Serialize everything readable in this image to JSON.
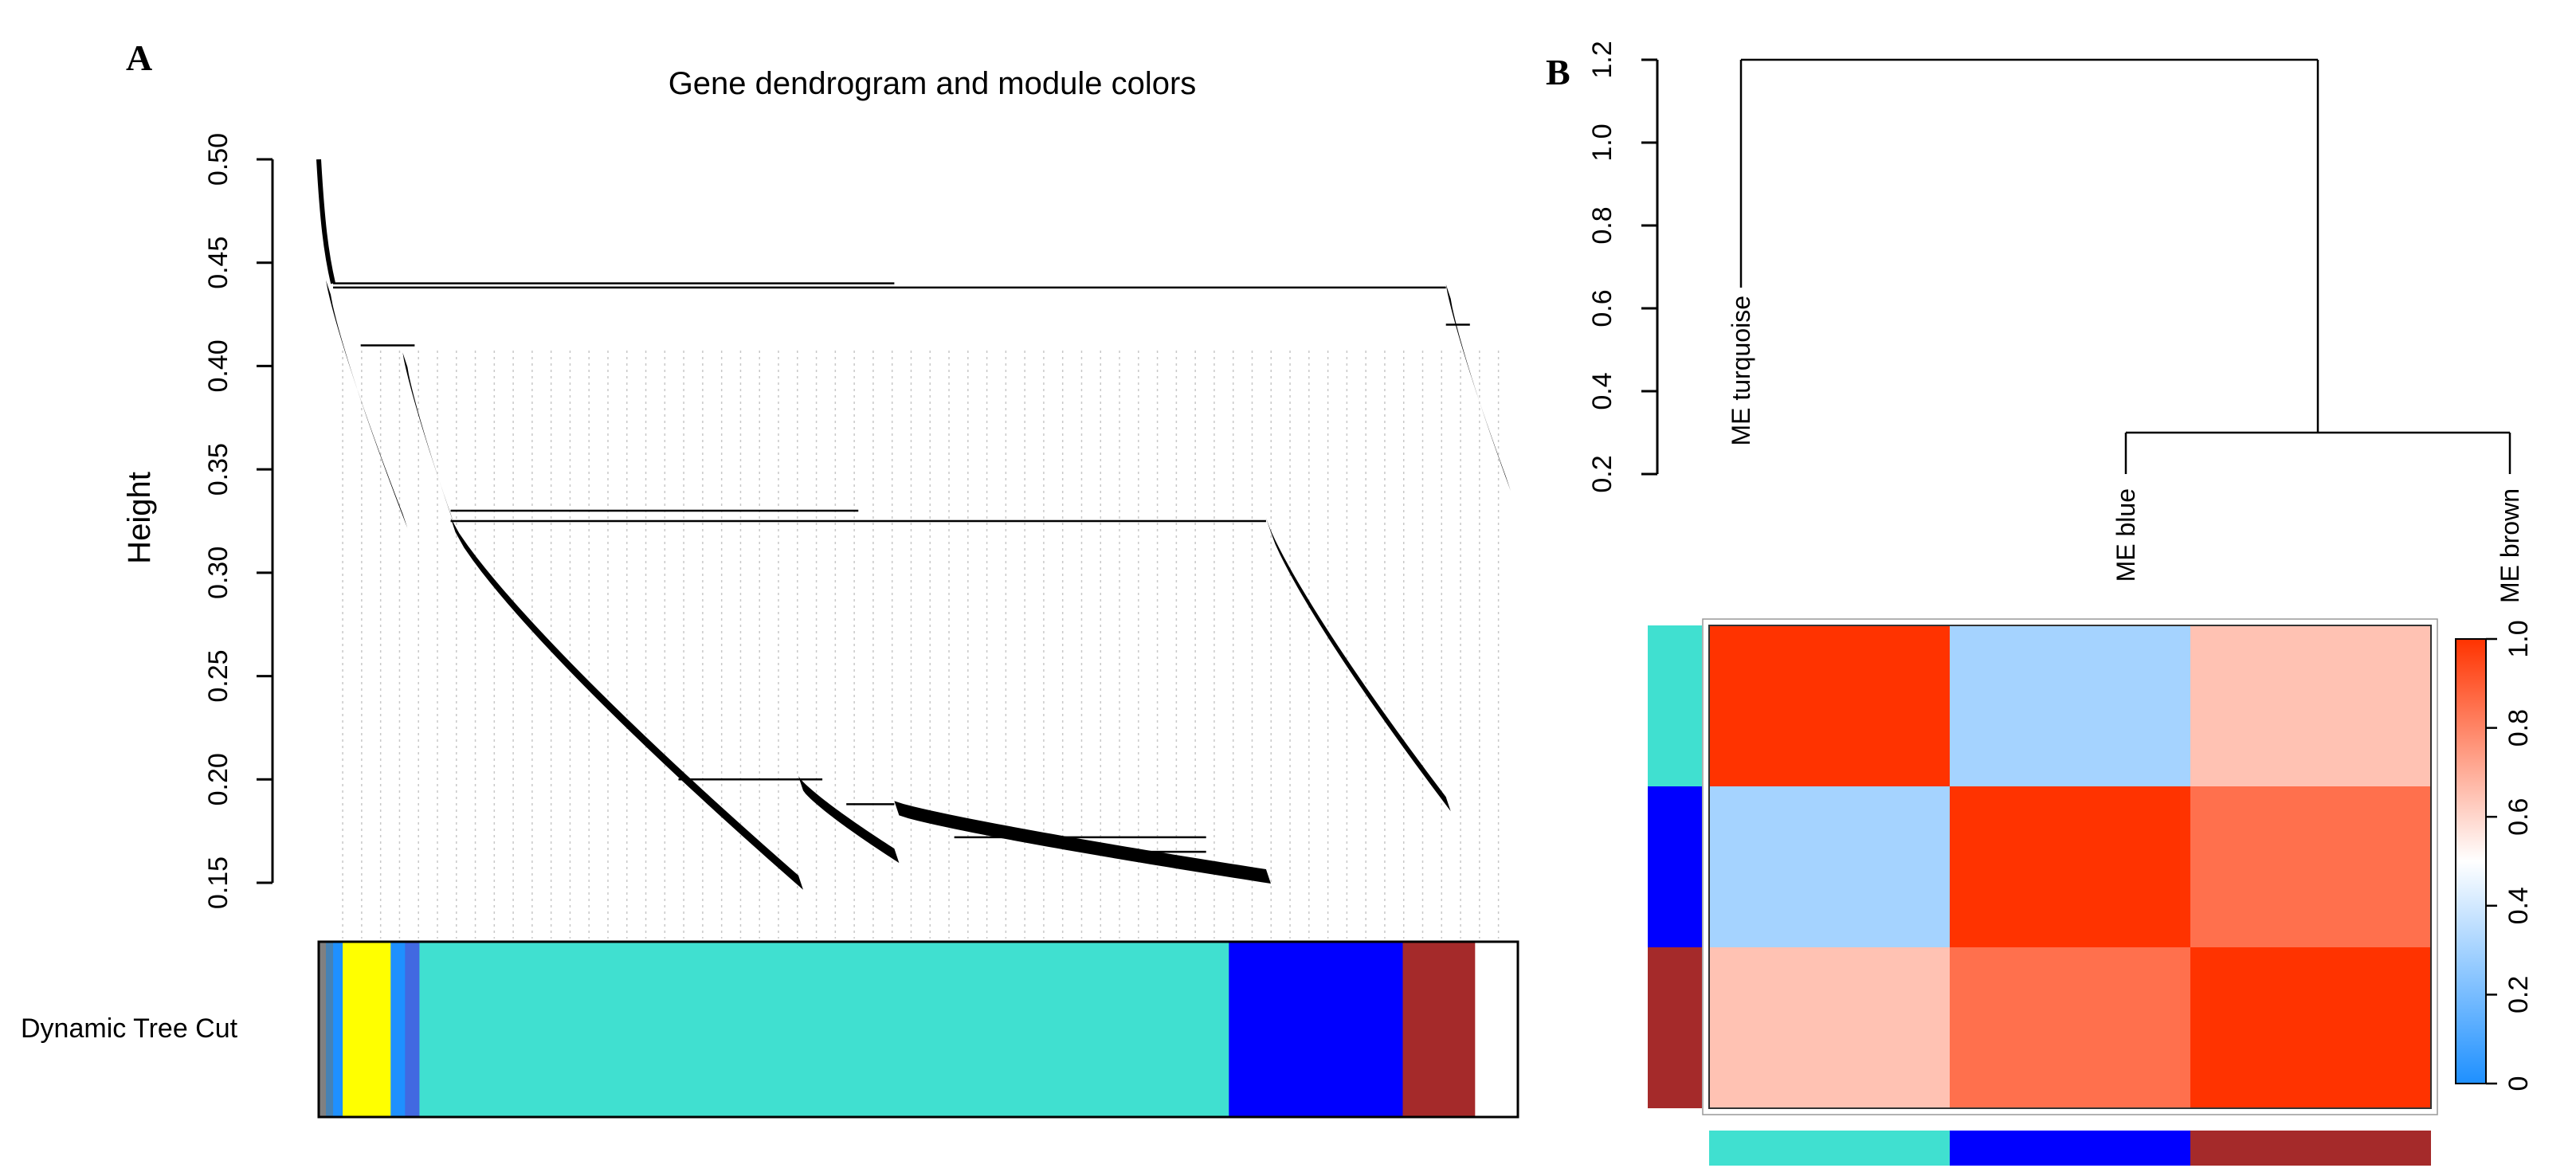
{
  "panel_a": {
    "letter": "A",
    "title": "Gene dendrogram and module colors",
    "ylabel": "Height",
    "color_row_label": "Dynamic Tree Cut"
  },
  "panel_b": {
    "letter": "B"
  },
  "chart_data": [
    {
      "type": "dendrogram",
      "title": "Gene dendrogram and module colors",
      "ylabel": "Height",
      "ylim": [
        0.15,
        0.5
      ],
      "yticks": [
        "0.15",
        "0.20",
        "0.25",
        "0.30",
        "0.35",
        "0.40",
        "0.45",
        "0.50"
      ],
      "yticks_values": [
        0.15,
        0.2,
        0.25,
        0.3,
        0.35,
        0.4,
        0.45,
        0.5
      ],
      "root_height": 0.5,
      "color_row": {
        "label": "Dynamic Tree Cut",
        "segments": [
          {
            "color": "#808080",
            "share": 0.006
          },
          {
            "color": "#4682B4",
            "share": 0.006
          },
          {
            "color": "#1E90FF",
            "share": 0.008
          },
          {
            "color": "#FFFF00",
            "share": 0.04
          },
          {
            "color": "#1E90FF",
            "share": 0.012
          },
          {
            "color": "#4169E1",
            "share": 0.012
          },
          {
            "color": "#40E0D0",
            "share": 0.675
          },
          {
            "color": "#0000FF",
            "share": 0.145
          },
          {
            "color": "#A52A2A",
            "share": 0.06
          }
        ]
      },
      "branches": [
        {
          "x_start": 0.006,
          "x_end": 0.07,
          "h_top": 0.44,
          "h_bottom": 0.327
        },
        {
          "x_start": 0.07,
          "x_end": 0.11,
          "h_top": 0.405,
          "h_bottom": 0.327
        },
        {
          "x_start": 0.11,
          "x_end": 0.4,
          "h_top": 0.325,
          "h_bottom": 0.152
        },
        {
          "x_start": 0.4,
          "x_end": 0.48,
          "h_top": 0.2,
          "h_bottom": 0.165
        },
        {
          "x_start": 0.48,
          "x_end": 0.79,
          "h_top": 0.188,
          "h_bottom": 0.155
        },
        {
          "x_start": 0.79,
          "x_end": 0.94,
          "h_top": 0.325,
          "h_bottom": 0.19
        },
        {
          "x_start": 0.94,
          "x_end": 0.99,
          "h_top": 0.438,
          "h_bottom": 0.345
        }
      ]
    },
    {
      "type": "dendrogram",
      "ylim": [
        0.2,
        1.2
      ],
      "yticks": [
        "0.2",
        "0.4",
        "0.6",
        "0.8",
        "1.0",
        "1.2"
      ],
      "yticks_values": [
        0.2,
        0.4,
        0.6,
        0.8,
        1.0,
        1.2
      ],
      "leaves": [
        "ME turquoise",
        "ME blue",
        "ME brown"
      ],
      "merges": [
        {
          "left": "ME blue",
          "right": "ME brown",
          "height": 0.3
        },
        {
          "left": "ME turquoise",
          "right": "(ME blue, ME brown)",
          "height": 1.2
        }
      ]
    },
    {
      "type": "heatmap",
      "rows": [
        "turquoise",
        "blue",
        "brown"
      ],
      "cols": [
        "turquoise",
        "blue",
        "brown"
      ],
      "row_colors": [
        "#40E0D0",
        "#0000FF",
        "#A52A2A"
      ],
      "col_colors": [
        "#40E0D0",
        "#0000FF",
        "#A52A2A"
      ],
      "values": [
        [
          1.0,
          0.3,
          0.65
        ],
        [
          0.3,
          1.0,
          0.85
        ],
        [
          0.65,
          0.85,
          1.0
        ]
      ],
      "colorbar": {
        "range": [
          0,
          1
        ],
        "ticks": [
          "0",
          "0.2",
          "0.4",
          "0.6",
          "0.8",
          "1.0"
        ],
        "ticks_values": [
          0,
          0.2,
          0.4,
          0.6,
          0.8,
          1.0
        ],
        "low_color": "#1E90FF",
        "mid_color": "#FFFFFF",
        "high_color": "#FF3300"
      }
    }
  ]
}
